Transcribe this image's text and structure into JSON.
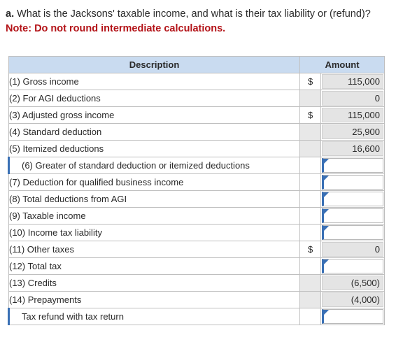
{
  "question": {
    "letter": "a.",
    "text": " What is the Jacksons' taxable income, and what is their tax liability or (refund)?",
    "note": "Note: Do not round intermediate calculations."
  },
  "table": {
    "headers": {
      "description": "Description",
      "amount": "Amount"
    },
    "rows": [
      {
        "label": "(1) Gross income",
        "currency": "$",
        "amount": "115,000",
        "editable": false
      },
      {
        "label": "(2) For AGI deductions",
        "currency": "",
        "amount": "0",
        "editable": false
      },
      {
        "label": "(3) Adjusted gross income",
        "currency": "$",
        "amount": "115,000",
        "editable": false
      },
      {
        "label": "(4) Standard deduction",
        "currency": "",
        "amount": "25,900",
        "editable": false
      },
      {
        "label": "(5) Itemized deductions",
        "currency": "",
        "amount": "16,600",
        "editable": false
      },
      {
        "label": "(6) Greater of standard deduction or itemized deductions",
        "currency": "",
        "amount": "",
        "editable": true
      },
      {
        "label": "(7) Deduction for qualified business income",
        "currency": "",
        "amount": "",
        "editable": true
      },
      {
        "label": "(8) Total deductions from AGI",
        "currency": "",
        "amount": "",
        "editable": true
      },
      {
        "label": "(9) Taxable income",
        "currency": "",
        "amount": "",
        "editable": true
      },
      {
        "label": "(10) Income tax liability",
        "currency": "",
        "amount": "",
        "editable": true
      },
      {
        "label": "(11) Other taxes",
        "currency": "$",
        "amount": "0",
        "editable": false
      },
      {
        "label": "(12) Total tax",
        "currency": "",
        "amount": "",
        "editable": true
      },
      {
        "label": "(13) Credits",
        "currency": "",
        "amount": "(6,500)",
        "editable": false
      },
      {
        "label": "(14) Prepayments",
        "currency": "",
        "amount": "(4,000)",
        "editable": false
      },
      {
        "label": "Tax refund with tax return",
        "currency": "",
        "amount": "",
        "editable": true
      }
    ]
  }
}
